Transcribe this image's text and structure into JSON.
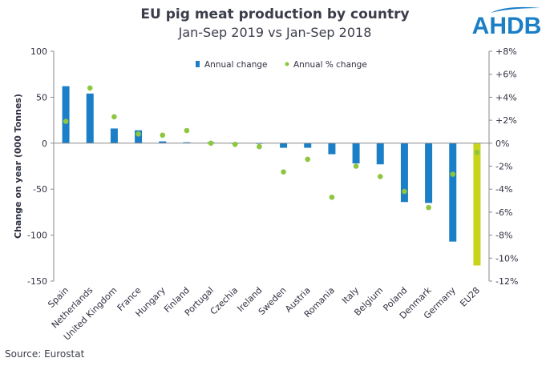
{
  "header": {
    "title": "EU pig meat production by country",
    "subtitle": "Jan-Sep 2019 vs Jan-Sep 2018",
    "logo_text": "AHDB"
  },
  "footer": {
    "source": "Source: Eurostat"
  },
  "colors": {
    "bar": "#1a7fc6",
    "eu_bar": "#c8d41a",
    "dot": "#8dc63f",
    "title": "#3b3d4b",
    "logo": "#1a7fc6"
  },
  "chart_data": {
    "type": "bar",
    "categories": [
      "Spain",
      "Netherlands",
      "United Kingdom",
      "France",
      "Hungary",
      "Finland",
      "Portugal",
      "Czechia",
      "Ireland",
      "Sweden",
      "Austria",
      "Romania",
      "Italy",
      "Belgium",
      "Poland",
      "Denmark",
      "Germany",
      "EU28"
    ],
    "series": [
      {
        "name": "Annual change",
        "type": "bar",
        "axis": "left",
        "values": [
          62,
          54,
          16,
          14,
          2,
          1,
          1,
          0,
          0,
          -5,
          -5,
          -12,
          -22,
          -23,
          -64,
          -65,
          -107,
          -133
        ]
      },
      {
        "name": "Annual % change",
        "type": "scatter",
        "axis": "right",
        "values": [
          1.9,
          4.8,
          2.3,
          0.8,
          0.7,
          1.1,
          0.0,
          -0.1,
          -0.3,
          -2.5,
          -1.4,
          -4.7,
          -2.0,
          -2.9,
          -4.2,
          -5.6,
          -2.7,
          -0.8
        ]
      }
    ],
    "ylabel": "Change on year (000 Tonnes)",
    "ylim": [
      -150,
      100
    ],
    "yticks": [
      "100",
      "50",
      "0",
      "-50",
      "-100",
      "-150"
    ],
    "y2lim": [
      -12,
      8
    ],
    "y2ticks": [
      "+8%",
      "+6%",
      "+4%",
      "+2%",
      "0%",
      "-2%",
      "-4%",
      "-6%",
      "-8%",
      "-10%",
      "-12%"
    ],
    "legend_position": "top-center",
    "grid": false
  }
}
